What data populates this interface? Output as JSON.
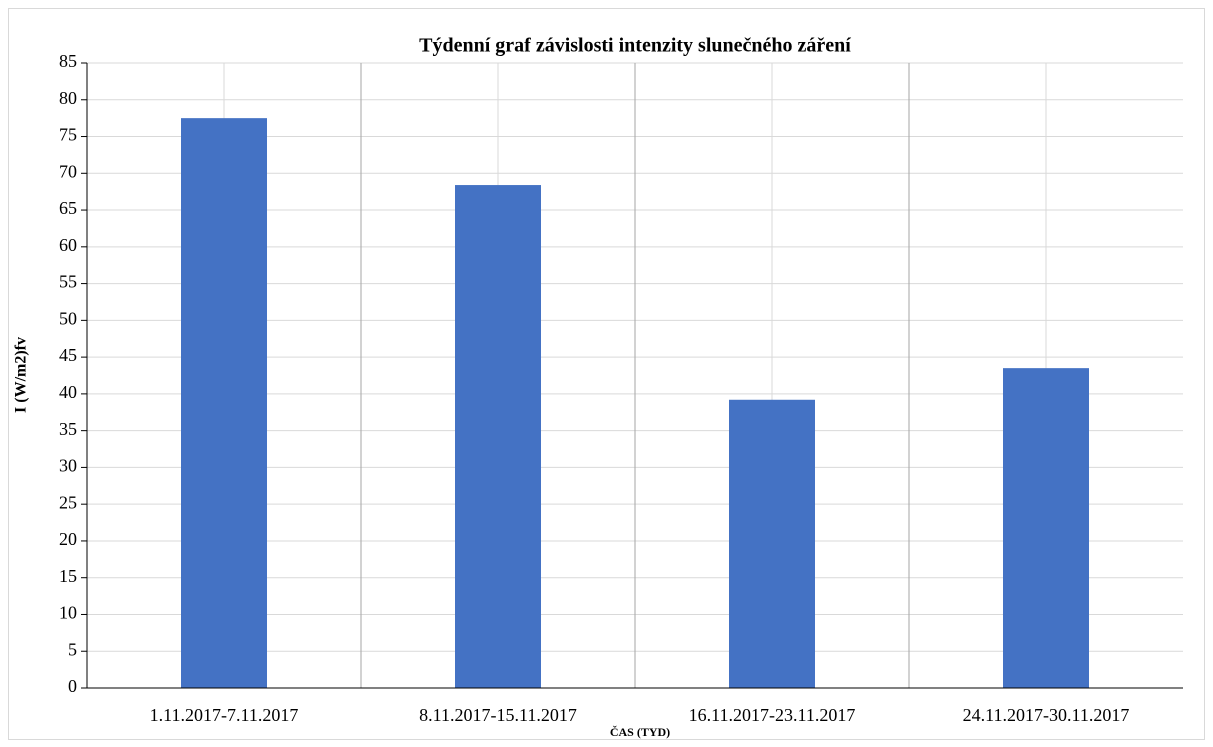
{
  "chart_data": {
    "type": "bar",
    "title": "Týdenní graf závislosti intenzity slunečného záření",
    "x_label": "ČAS (TYD)",
    "y_label": "I (W/m2)fv",
    "categories": [
      "1.11.2017-7.11.2017",
      "8.11.2017-15.11.2017",
      "16.11.2017-23.11.2017",
      "24.11.2017-30.11.2017"
    ],
    "values": [
      77.5,
      68.4,
      39.2,
      43.5
    ],
    "color": "#4472c4",
    "ylim": [
      0,
      85
    ],
    "yticks": [
      0,
      5,
      10,
      15,
      20,
      25,
      30,
      35,
      40,
      45,
      50,
      55,
      60,
      65,
      70,
      75,
      80,
      85
    ],
    "grid": true
  }
}
